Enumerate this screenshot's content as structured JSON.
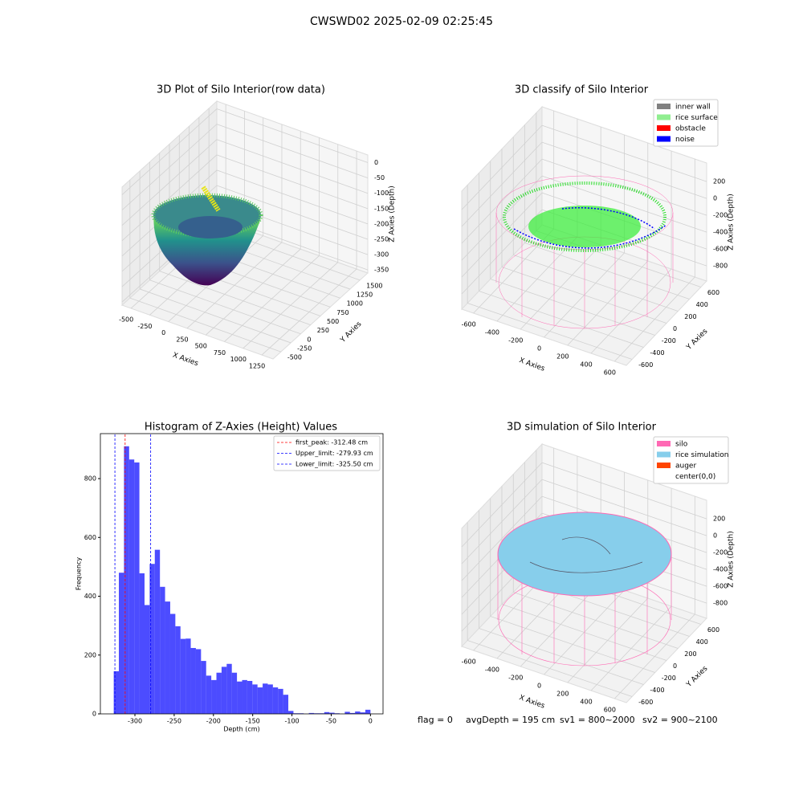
{
  "title": "CWSWD02 2025-02-09 02:25:45",
  "chart_data": [
    {
      "type": "scatter3d",
      "title": "3D Plot of Silo Interior(row data)",
      "xlabel": "X Axies",
      "ylabel": "Y Axies",
      "zlabel": "Z Axies (Depth)",
      "xlim": [
        -620,
        1400
      ],
      "ylim": [
        -700,
        1700
      ],
      "zlim": [
        -360,
        25
      ],
      "xticks": [
        -500,
        -250,
        0,
        250,
        500,
        750,
        1000,
        1250
      ],
      "yticks": [
        -500,
        -250,
        0,
        250,
        500,
        750,
        1000,
        1250,
        1500
      ],
      "zticks": [
        0,
        -50,
        -100,
        -150,
        -200,
        -250,
        -300,
        -350
      ]
    },
    {
      "type": "scatter3d",
      "title": "3D classify of Silo Interior",
      "xlabel": "X Axies",
      "ylabel": "Y Axies",
      "zlabel": "Z Axies (Depth)",
      "xlim": [
        -700,
        700
      ],
      "ylim": [
        -700,
        700
      ],
      "zlim": [
        -980,
        420
      ],
      "xticks": [
        -600,
        -400,
        -200,
        0,
        200,
        400,
        600
      ],
      "yticks": [
        -600,
        -400,
        -200,
        0,
        200,
        400,
        600
      ],
      "zticks": [
        200,
        0,
        -200,
        -400,
        -600,
        -800
      ],
      "legend": [
        {
          "name": "inner wall",
          "color": "gray"
        },
        {
          "name": "rice surface",
          "color": "lightgreen"
        },
        {
          "name": "obstacle",
          "color": "red"
        },
        {
          "name": "noise",
          "color": "blue"
        }
      ]
    },
    {
      "type": "histogram",
      "title": "Histogram of Z-Axies (Height) Values",
      "xlabel": "Depth (cm)",
      "ylabel": "Frequency",
      "color": "blue",
      "bins": [
        -327,
        -320.46,
        -313.92,
        -307.38,
        -300.84,
        -294.3,
        -287.76,
        -281.22,
        -274.68,
        -268.14,
        -261.6,
        -255.06,
        -248.52,
        -241.98,
        -235.44,
        -228.9,
        -222.36,
        -215.82,
        -209.28,
        -202.74,
        -196.2,
        -189.66,
        -183.12,
        -176.58,
        -170.04,
        -163.5,
        -156.96,
        -150.42,
        -143.88,
        -137.34,
        -130.8,
        -124.26,
        -117.72,
        -111.18,
        -104.64,
        -98.1,
        -91.56,
        -85.02,
        -78.48,
        -71.94,
        -65.4,
        -58.86,
        -52.32,
        -45.78,
        -39.24,
        -32.7,
        -26.16,
        -19.62,
        -13.08,
        -6.54,
        0
      ],
      "values": [
        145,
        480,
        910,
        865,
        855,
        478,
        370,
        510,
        558,
        432,
        382,
        340,
        298,
        255,
        256,
        224,
        220,
        180,
        130,
        115,
        140,
        160,
        170,
        140,
        110,
        115,
        112,
        100,
        90,
        103,
        100,
        90,
        85,
        65,
        10,
        2,
        2,
        0,
        3,
        2,
        2,
        6,
        4,
        2,
        0,
        7,
        3,
        8,
        5,
        14
      ],
      "xlim": [
        -344,
        16
      ],
      "ylim": [
        0,
        953
      ],
      "xticks": [
        -300,
        -250,
        -200,
        -150,
        -100,
        -50,
        0
      ],
      "yticks": [
        0,
        200,
        400,
        600,
        800
      ],
      "reference_lines": [
        {
          "label": "first_peak: -312.48 cm",
          "value": -312.48,
          "color": "red"
        },
        {
          "label": "Upper_limit: -279.93 cm",
          "value": -279.93,
          "color": "blue"
        },
        {
          "label": "Lower_limit: -325.50 cm",
          "value": -325.5,
          "color": "blue"
        }
      ]
    },
    {
      "type": "scatter3d",
      "title": "3D simulation of Silo Interior",
      "xlabel": "X Axies",
      "ylabel": "Y Axies",
      "zlabel": "Z Axies (Depth)",
      "xlim": [
        -700,
        700
      ],
      "ylim": [
        -700,
        700
      ],
      "zlim": [
        -980,
        420
      ],
      "xticks": [
        -600,
        -400,
        -200,
        0,
        200,
        400,
        600
      ],
      "yticks": [
        -600,
        -400,
        -200,
        0,
        200,
        400,
        600
      ],
      "zticks": [
        200,
        0,
        -200,
        -400,
        -600,
        -800
      ],
      "legend": [
        {
          "name": "silo",
          "color": "hotpink"
        },
        {
          "name": "rice simulation",
          "color": "skyblue"
        },
        {
          "name": "auger",
          "color": "orangered"
        },
        {
          "name": "center(0,0)",
          "color": "white"
        }
      ]
    }
  ],
  "footer": [
    "flag = 0",
    "avgDepth = 195 cm",
    "sv1 = 800~2000",
    "sv2 = 900~2100"
  ]
}
